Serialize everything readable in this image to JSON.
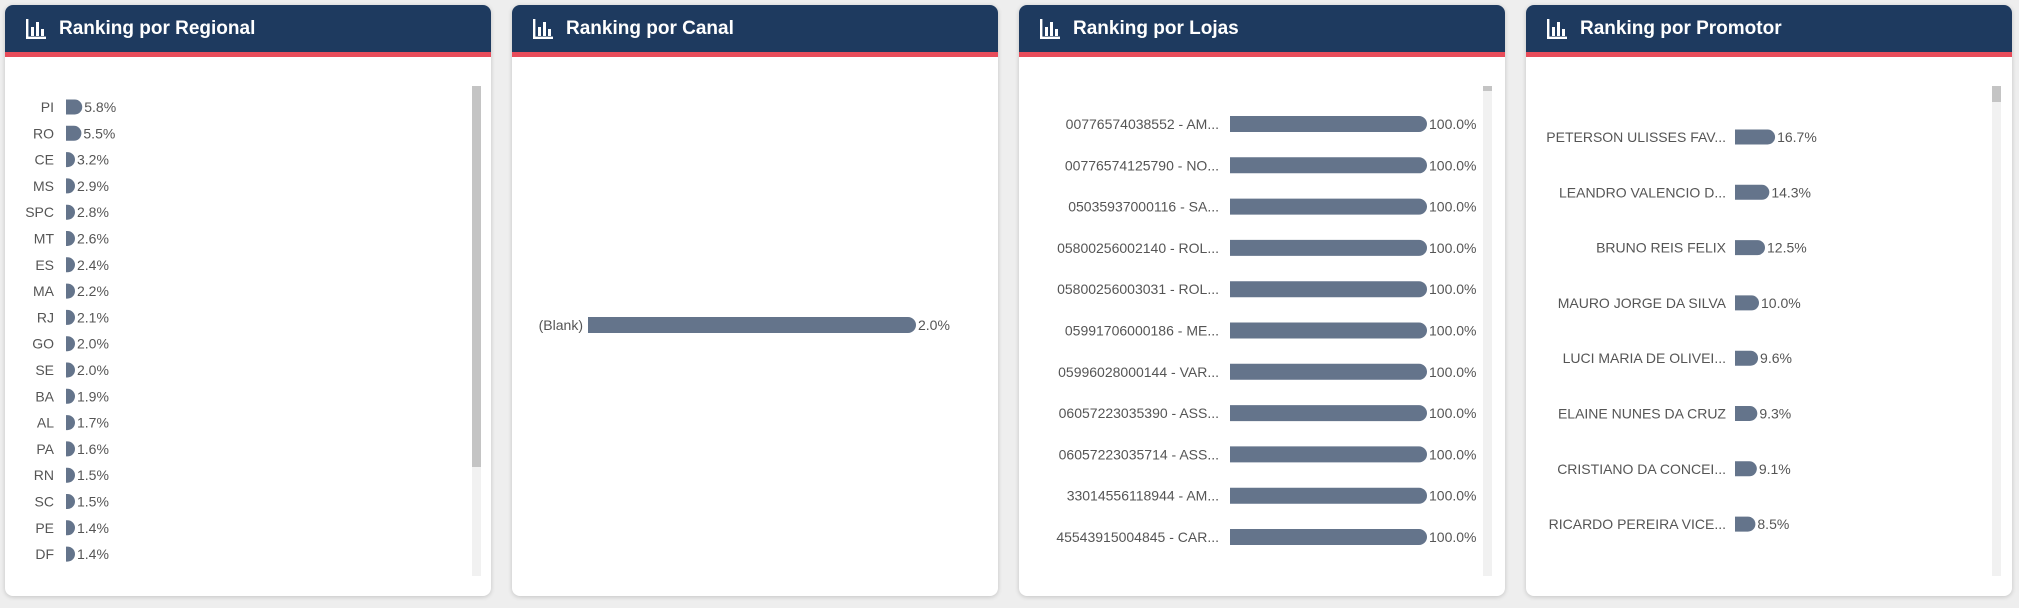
{
  "colors": {
    "header_bg": "#1e3a5f",
    "header_accent": "#e84c5a",
    "bar": "#64748b"
  },
  "chart_data": [
    {
      "type": "bar",
      "orientation": "horizontal",
      "title": "Ranking por Regional",
      "categories": [
        "PI",
        "RO",
        "CE",
        "MS",
        "SPC",
        "MT",
        "ES",
        "MA",
        "RJ",
        "GO",
        "SE",
        "BA",
        "AL",
        "PA",
        "RN",
        "SC",
        "PE",
        "DF"
      ],
      "values": [
        5.8,
        5.5,
        3.2,
        2.9,
        2.8,
        2.6,
        2.4,
        2.2,
        2.1,
        2.0,
        2.0,
        1.9,
        1.7,
        1.6,
        1.5,
        1.5,
        1.4,
        1.4
      ],
      "value_labels": [
        "5.8%",
        "5.5%",
        "3.2%",
        "2.9%",
        "2.8%",
        "2.6%",
        "2.4%",
        "2.2%",
        "2.1%",
        "2.0%",
        "2.0%",
        "1.9%",
        "1.7%",
        "1.6%",
        "1.5%",
        "1.5%",
        "1.4%",
        "1.4%"
      ],
      "xlim": [
        0,
        100
      ],
      "value_unit": "%"
    },
    {
      "type": "bar",
      "orientation": "horizontal",
      "title": "Ranking por Canal",
      "categories": [
        "(Blank)"
      ],
      "values": [
        2.0
      ],
      "value_labels": [
        "2.0%"
      ],
      "xlim": [
        0,
        2.0
      ],
      "value_unit": "%"
    },
    {
      "type": "bar",
      "orientation": "horizontal",
      "title": "Ranking por Lojas",
      "categories": [
        "00776574038552 - AM...",
        "00776574125790 - NO...",
        "05035937000116 - SA...",
        "05800256002140 - ROL...",
        "05800256003031 - ROL...",
        "05991706000186 - ME...",
        "05996028000144 - VAR...",
        "06057223035390 - ASS...",
        "06057223035714 - ASS...",
        "33014556118944 - AM...",
        "45543915004845 - CAR..."
      ],
      "values": [
        100,
        100,
        100,
        100,
        100,
        100,
        100,
        100,
        100,
        100,
        100
      ],
      "value_labels": [
        "100.0%",
        "100.0%",
        "100.0%",
        "100.0%",
        "100.0%",
        "100.0%",
        "100.0%",
        "100.0%",
        "100.0%",
        "100.0%",
        "100.0%"
      ],
      "xlim": [
        0,
        100
      ],
      "value_unit": "%"
    },
    {
      "type": "bar",
      "orientation": "horizontal",
      "title": "Ranking por Promotor",
      "categories": [
        "PETERSON ULISSES FAV...",
        "LEANDRO VALENCIO D...",
        "BRUNO REIS FELIX",
        "MAURO JORGE DA SILVA",
        "LUCI MARIA DE OLIVEI...",
        "ELAINE NUNES DA CRUZ",
        "CRISTIANO DA CONCEI...",
        "RICARDO PEREIRA VICE..."
      ],
      "values": [
        16.7,
        14.3,
        12.5,
        10.0,
        9.6,
        9.3,
        9.1,
        8.5
      ],
      "value_labels": [
        "16.7%",
        "14.3%",
        "12.5%",
        "10.0%",
        "9.6%",
        "9.3%",
        "9.1%",
        "8.5%"
      ],
      "xlim": [
        0,
        100
      ],
      "value_unit": "%"
    }
  ]
}
